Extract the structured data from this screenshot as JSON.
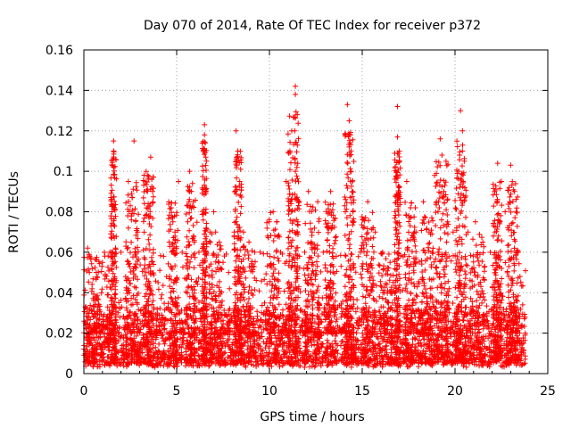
{
  "chart_data": {
    "type": "scatter",
    "title": "Day 070 of 2014, Rate Of TEC Index for receiver p372",
    "xlabel": "GPS time / hours",
    "ylabel": "ROTI / TECUs",
    "xlim": [
      0,
      25
    ],
    "ylim": [
      0,
      0.16
    ],
    "x_ticks": [
      0,
      5,
      10,
      15,
      20,
      25
    ],
    "x_tick_labels": [
      "0",
      "5",
      "10",
      "15",
      "20",
      "25"
    ],
    "y_ticks": [
      0,
      0.02,
      0.04,
      0.06,
      0.08,
      0.1,
      0.12,
      0.14,
      0.16
    ],
    "y_tick_labels": [
      "0",
      "0.02",
      "0.04",
      "0.06",
      "0.08",
      "0.1",
      "0.12",
      "0.14",
      "0.16"
    ],
    "grid": true,
    "marker": "+",
    "color": "#ff0000",
    "baseline_range": [
      0.003,
      0.03
    ],
    "x_data_range": [
      0,
      23.8
    ],
    "points_notable": [
      {
        "x": 0.2,
        "y": 0.062
      },
      {
        "x": 0.3,
        "y": 0.05
      },
      {
        "x": 1.0,
        "y": 0.055
      },
      {
        "x": 1.4,
        "y": 0.06
      },
      {
        "x": 1.6,
        "y": 0.115
      },
      {
        "x": 1.6,
        "y": 0.11
      },
      {
        "x": 1.6,
        "y": 0.102
      },
      {
        "x": 1.6,
        "y": 0.083
      },
      {
        "x": 2.0,
        "y": 0.06
      },
      {
        "x": 2.4,
        "y": 0.095
      },
      {
        "x": 2.5,
        "y": 0.083
      },
      {
        "x": 2.6,
        "y": 0.087
      },
      {
        "x": 2.7,
        "y": 0.115
      },
      {
        "x": 2.9,
        "y": 0.07
      },
      {
        "x": 3.3,
        "y": 0.095
      },
      {
        "x": 3.5,
        "y": 0.078
      },
      {
        "x": 3.6,
        "y": 0.107
      },
      {
        "x": 3.7,
        "y": 0.09
      },
      {
        "x": 4.0,
        "y": 0.045
      },
      {
        "x": 4.3,
        "y": 0.058
      },
      {
        "x": 4.6,
        "y": 0.065
      },
      {
        "x": 4.7,
        "y": 0.082
      },
      {
        "x": 4.8,
        "y": 0.075
      },
      {
        "x": 5.1,
        "y": 0.095
      },
      {
        "x": 5.3,
        "y": 0.06
      },
      {
        "x": 5.6,
        "y": 0.075
      },
      {
        "x": 5.7,
        "y": 0.1
      },
      {
        "x": 5.8,
        "y": 0.09
      },
      {
        "x": 5.9,
        "y": 0.085
      },
      {
        "x": 6.2,
        "y": 0.06
      },
      {
        "x": 6.5,
        "y": 0.123
      },
      {
        "x": 6.5,
        "y": 0.118
      },
      {
        "x": 6.8,
        "y": 0.07
      },
      {
        "x": 7.0,
        "y": 0.08
      },
      {
        "x": 7.1,
        "y": 0.07
      },
      {
        "x": 7.3,
        "y": 0.065
      },
      {
        "x": 7.5,
        "y": 0.055
      },
      {
        "x": 7.8,
        "y": 0.05
      },
      {
        "x": 8.1,
        "y": 0.07
      },
      {
        "x": 8.2,
        "y": 0.12
      },
      {
        "x": 8.3,
        "y": 0.11
      },
      {
        "x": 8.4,
        "y": 0.095
      },
      {
        "x": 8.6,
        "y": 0.07
      },
      {
        "x": 8.9,
        "y": 0.065
      },
      {
        "x": 9.2,
        "y": 0.06
      },
      {
        "x": 9.5,
        "y": 0.06
      },
      {
        "x": 9.9,
        "y": 0.068
      },
      {
        "x": 10.2,
        "y": 0.08
      },
      {
        "x": 10.4,
        "y": 0.075
      },
      {
        "x": 10.6,
        "y": 0.06
      },
      {
        "x": 10.9,
        "y": 0.095
      },
      {
        "x": 11.1,
        "y": 0.11
      },
      {
        "x": 11.2,
        "y": 0.12
      },
      {
        "x": 11.4,
        "y": 0.142
      },
      {
        "x": 11.4,
        "y": 0.138
      },
      {
        "x": 11.5,
        "y": 0.128
      },
      {
        "x": 11.4,
        "y": 0.1
      },
      {
        "x": 11.6,
        "y": 0.085
      },
      {
        "x": 11.9,
        "y": 0.06
      },
      {
        "x": 12.1,
        "y": 0.09
      },
      {
        "x": 12.3,
        "y": 0.07
      },
      {
        "x": 12.6,
        "y": 0.085
      },
      {
        "x": 12.9,
        "y": 0.06
      },
      {
        "x": 13.3,
        "y": 0.09
      },
      {
        "x": 13.6,
        "y": 0.058
      },
      {
        "x": 14.1,
        "y": 0.118
      },
      {
        "x": 14.2,
        "y": 0.133
      },
      {
        "x": 14.3,
        "y": 0.125
      },
      {
        "x": 14.3,
        "y": 0.112
      },
      {
        "x": 14.4,
        "y": 0.1
      },
      {
        "x": 14.5,
        "y": 0.08
      },
      {
        "x": 14.9,
        "y": 0.06
      },
      {
        "x": 15.3,
        "y": 0.085
      },
      {
        "x": 15.7,
        "y": 0.07
      },
      {
        "x": 16.1,
        "y": 0.06
      },
      {
        "x": 16.5,
        "y": 0.055
      },
      {
        "x": 16.9,
        "y": 0.132
      },
      {
        "x": 16.9,
        "y": 0.117
      },
      {
        "x": 17.0,
        "y": 0.11
      },
      {
        "x": 17.4,
        "y": 0.095
      },
      {
        "x": 17.6,
        "y": 0.082
      },
      {
        "x": 17.9,
        "y": 0.07
      },
      {
        "x": 18.3,
        "y": 0.085
      },
      {
        "x": 18.6,
        "y": 0.07
      },
      {
        "x": 18.9,
        "y": 0.098
      },
      {
        "x": 19.0,
        "y": 0.085
      },
      {
        "x": 19.2,
        "y": 0.116
      },
      {
        "x": 19.3,
        "y": 0.108
      },
      {
        "x": 19.4,
        "y": 0.09
      },
      {
        "x": 19.6,
        "y": 0.075
      },
      {
        "x": 19.9,
        "y": 0.07
      },
      {
        "x": 20.2,
        "y": 0.1
      },
      {
        "x": 20.3,
        "y": 0.13
      },
      {
        "x": 20.4,
        "y": 0.12
      },
      {
        "x": 20.4,
        "y": 0.11
      },
      {
        "x": 20.5,
        "y": 0.105
      },
      {
        "x": 20.7,
        "y": 0.07
      },
      {
        "x": 21.1,
        "y": 0.075
      },
      {
        "x": 21.5,
        "y": 0.065
      },
      {
        "x": 21.9,
        "y": 0.06
      },
      {
        "x": 22.3,
        "y": 0.104
      },
      {
        "x": 22.5,
        "y": 0.095
      },
      {
        "x": 22.7,
        "y": 0.08
      },
      {
        "x": 23.0,
        "y": 0.103
      },
      {
        "x": 23.2,
        "y": 0.09
      },
      {
        "x": 23.4,
        "y": 0.06
      },
      {
        "x": 23.5,
        "y": 0.048
      }
    ],
    "bursts": [
      {
        "x": 0.3,
        "peak": 0.058,
        "width": 0.4
      },
      {
        "x": 1.0,
        "peak": 0.055,
        "width": 0.5
      },
      {
        "x": 1.6,
        "peak": 0.11,
        "width": 0.15
      },
      {
        "x": 2.6,
        "peak": 0.095,
        "width": 0.35
      },
      {
        "x": 3.5,
        "peak": 0.1,
        "width": 0.3
      },
      {
        "x": 4.8,
        "peak": 0.085,
        "width": 0.3
      },
      {
        "x": 5.8,
        "peak": 0.095,
        "width": 0.3
      },
      {
        "x": 6.5,
        "peak": 0.115,
        "width": 0.12
      },
      {
        "x": 7.1,
        "peak": 0.07,
        "width": 0.35
      },
      {
        "x": 8.3,
        "peak": 0.11,
        "width": 0.2
      },
      {
        "x": 8.9,
        "peak": 0.065,
        "width": 0.35
      },
      {
        "x": 10.2,
        "peak": 0.08,
        "width": 0.35
      },
      {
        "x": 11.3,
        "peak": 0.13,
        "width": 0.3
      },
      {
        "x": 12.3,
        "peak": 0.085,
        "width": 0.4
      },
      {
        "x": 13.3,
        "peak": 0.085,
        "width": 0.3
      },
      {
        "x": 14.3,
        "peak": 0.12,
        "width": 0.25
      },
      {
        "x": 15.3,
        "peak": 0.08,
        "width": 0.35
      },
      {
        "x": 16.3,
        "peak": 0.06,
        "width": 0.4
      },
      {
        "x": 16.9,
        "peak": 0.11,
        "width": 0.15
      },
      {
        "x": 17.6,
        "peak": 0.085,
        "width": 0.3
      },
      {
        "x": 18.5,
        "peak": 0.08,
        "width": 0.35
      },
      {
        "x": 19.3,
        "peak": 0.105,
        "width": 0.35
      },
      {
        "x": 20.3,
        "peak": 0.115,
        "width": 0.3
      },
      {
        "x": 21.2,
        "peak": 0.07,
        "width": 0.4
      },
      {
        "x": 22.3,
        "peak": 0.095,
        "width": 0.25
      },
      {
        "x": 23.1,
        "peak": 0.095,
        "width": 0.3
      }
    ]
  }
}
